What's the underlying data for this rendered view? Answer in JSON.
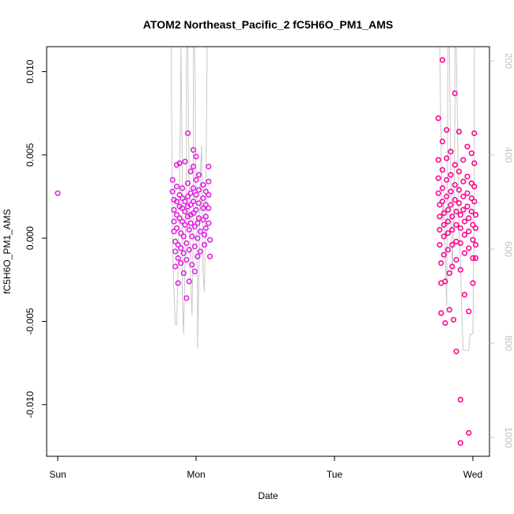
{
  "chart_data": {
    "type": "scatter",
    "title": "ATOM2 Northeast_Pacific_2 fC5H6O_PM1_AMS",
    "xlabel": "Date",
    "ylabel": "fC5H6O_PM1_AMS",
    "x_ticks": [
      {
        "value": 0,
        "label": "Sun"
      },
      {
        "value": 1,
        "label": "Mon"
      },
      {
        "value": 2,
        "label": "Tue"
      },
      {
        "value": 3,
        "label": "Wed"
      }
    ],
    "y_ticks": [
      {
        "value": -0.01,
        "label": "-0.010"
      },
      {
        "value": -0.005,
        "label": "-0.005"
      },
      {
        "value": 0.0,
        "label": "0.000"
      },
      {
        "value": 0.005,
        "label": "0.005"
      },
      {
        "value": 0.01,
        "label": "0.010"
      }
    ],
    "right_axis": {
      "reversed": true,
      "range": [
        170,
        1040
      ],
      "ticks": [
        {
          "value": 200,
          "label": "200"
        },
        {
          "value": 400,
          "label": "400"
        },
        {
          "value": 600,
          "label": "600"
        },
        {
          "value": 800,
          "label": "800"
        },
        {
          "value": 1000,
          "label": "1000"
        }
      ],
      "color": "#c0c0c0"
    },
    "xlim": [
      -0.08,
      3.12
    ],
    "ylim": [
      -0.0131,
      0.0115
    ],
    "grid": false,
    "colors": {
      "early": "#e020e0",
      "late": "#ff0090",
      "line": "#c8c8c8"
    },
    "series": [
      {
        "points": [
          [
            0.0,
            0.0027
          ],
          [
            0.83,
            0.0035
          ],
          [
            0.83,
            0.0028
          ],
          [
            0.84,
            0.0023
          ],
          [
            0.84,
            0.0017
          ],
          [
            0.84,
            0.001
          ],
          [
            0.84,
            0.0004
          ],
          [
            0.85,
            -0.0002
          ],
          [
            0.85,
            -0.0008
          ],
          [
            0.85,
            -0.0017
          ],
          [
            0.86,
            0.0044
          ],
          [
            0.86,
            0.0031
          ],
          [
            0.86,
            0.0022
          ],
          [
            0.86,
            0.0014
          ],
          [
            0.86,
            0.0006
          ],
          [
            0.87,
            -0.0004
          ],
          [
            0.87,
            -0.0012
          ],
          [
            0.87,
            -0.0027
          ],
          [
            0.88,
            0.0045
          ],
          [
            0.88,
            0.0026
          ],
          [
            0.88,
            0.0019
          ],
          [
            0.88,
            0.0012
          ],
          [
            0.89,
            0.0003
          ],
          [
            0.89,
            -0.0006
          ],
          [
            0.89,
            -0.0015
          ],
          [
            0.9,
            0.003
          ],
          [
            0.9,
            0.0024
          ],
          [
            0.9,
            0.0018
          ],
          [
            0.9,
            0.001
          ],
          [
            0.91,
            0.0001
          ],
          [
            0.91,
            -0.0009
          ],
          [
            0.91,
            -0.0021
          ],
          [
            0.92,
            0.0046
          ],
          [
            0.92,
            0.0022
          ],
          [
            0.92,
            0.0016
          ],
          [
            0.92,
            0.0008
          ],
          [
            0.93,
            -0.0003
          ],
          [
            0.93,
            -0.0013
          ],
          [
            0.93,
            -0.0036
          ],
          [
            0.94,
            0.0063
          ],
          [
            0.94,
            0.0033
          ],
          [
            0.94,
            0.0025
          ],
          [
            0.94,
            0.0019
          ],
          [
            0.94,
            0.0013
          ],
          [
            0.95,
            0.0005
          ],
          [
            0.95,
            -0.0007
          ],
          [
            0.95,
            -0.0026
          ],
          [
            0.96,
            0.004
          ],
          [
            0.96,
            0.0027
          ],
          [
            0.96,
            0.002
          ],
          [
            0.96,
            0.0014
          ],
          [
            0.96,
            0.0009
          ],
          [
            0.97,
            0.0001
          ],
          [
            0.97,
            -0.0016
          ],
          [
            0.98,
            0.0053
          ],
          [
            0.98,
            0.0043
          ],
          [
            0.98,
            0.003
          ],
          [
            0.98,
            0.0022
          ],
          [
            0.98,
            0.0015
          ],
          [
            0.99,
            0.0007
          ],
          [
            0.99,
            -0.0005
          ],
          [
            0.99,
            -0.002
          ],
          [
            1.0,
            0.0049
          ],
          [
            1.0,
            0.0035
          ],
          [
            1.0,
            0.0026
          ],
          [
            1.0,
            0.0017
          ],
          [
            1.01,
            0.0009
          ],
          [
            1.01,
            0.0
          ],
          [
            1.01,
            -0.0011
          ],
          [
            1.02,
            0.0038
          ],
          [
            1.02,
            0.0029
          ],
          [
            1.02,
            0.0021
          ],
          [
            1.02,
            0.0012
          ],
          [
            1.03,
            0.0004
          ],
          [
            1.03,
            -0.0008
          ],
          [
            1.05,
            0.0032
          ],
          [
            1.05,
            0.0024
          ],
          [
            1.05,
            0.0018
          ],
          [
            1.05,
            0.0011
          ],
          [
            1.06,
            0.0002
          ],
          [
            1.06,
            -0.0004
          ],
          [
            1.07,
            0.0028
          ],
          [
            1.07,
            0.002
          ],
          [
            1.07,
            0.0013
          ],
          [
            1.07,
            0.0006
          ],
          [
            1.09,
            0.0043
          ],
          [
            1.09,
            0.0034
          ],
          [
            1.09,
            0.0026
          ],
          [
            1.09,
            0.0018
          ],
          [
            1.09,
            0.0009
          ],
          [
            1.1,
            -0.0001
          ],
          [
            1.1,
            -0.0011
          ]
        ]
      },
      {
        "points": [
          [
            2.75,
            0.0072
          ],
          [
            2.75,
            0.0047
          ],
          [
            2.75,
            0.0036
          ],
          [
            2.75,
            0.0027
          ],
          [
            2.76,
            0.002
          ],
          [
            2.76,
            0.0013
          ],
          [
            2.76,
            0.0005
          ],
          [
            2.76,
            -0.0004
          ],
          [
            2.77,
            -0.0015
          ],
          [
            2.77,
            -0.0027
          ],
          [
            2.77,
            -0.0045
          ],
          [
            2.78,
            0.0107
          ],
          [
            2.78,
            0.0058
          ],
          [
            2.78,
            0.0041
          ],
          [
            2.78,
            0.003
          ],
          [
            2.78,
            0.0022
          ],
          [
            2.79,
            0.0015
          ],
          [
            2.79,
            0.0008
          ],
          [
            2.79,
            0.0001
          ],
          [
            2.79,
            -0.001
          ],
          [
            2.8,
            -0.0026
          ],
          [
            2.8,
            -0.0051
          ],
          [
            2.81,
            0.0065
          ],
          [
            2.81,
            0.0048
          ],
          [
            2.81,
            0.0035
          ],
          [
            2.81,
            0.0025
          ],
          [
            2.82,
            0.0017
          ],
          [
            2.82,
            0.001
          ],
          [
            2.82,
            0.0003
          ],
          [
            2.82,
            -0.0007
          ],
          [
            2.83,
            -0.0021
          ],
          [
            2.83,
            -0.0043
          ],
          [
            2.84,
            0.0052
          ],
          [
            2.84,
            0.0038
          ],
          [
            2.84,
            0.0028
          ],
          [
            2.84,
            0.002
          ],
          [
            2.85,
            0.0013
          ],
          [
            2.85,
            0.0005
          ],
          [
            2.85,
            -0.0004
          ],
          [
            2.85,
            -0.0017
          ],
          [
            2.86,
            -0.0049
          ],
          [
            2.87,
            0.0087
          ],
          [
            2.87,
            0.0044
          ],
          [
            2.87,
            0.0032
          ],
          [
            2.87,
            0.0023
          ],
          [
            2.88,
            0.0016
          ],
          [
            2.88,
            0.0008
          ],
          [
            2.88,
            -0.0002
          ],
          [
            2.88,
            -0.0013
          ],
          [
            2.88,
            -0.0068
          ],
          [
            2.9,
            0.0064
          ],
          [
            2.9,
            0.004
          ],
          [
            2.9,
            0.0029
          ],
          [
            2.9,
            0.0021
          ],
          [
            2.91,
            0.0014
          ],
          [
            2.91,
            0.0006
          ],
          [
            2.91,
            -0.0003
          ],
          [
            2.91,
            -0.0019
          ],
          [
            2.91,
            -0.0097
          ],
          [
            2.91,
            -0.0123
          ],
          [
            2.93,
            0.0047
          ],
          [
            2.93,
            0.0034
          ],
          [
            2.93,
            0.0025
          ],
          [
            2.93,
            0.0017
          ],
          [
            2.94,
            0.001
          ],
          [
            2.94,
            0.0002
          ],
          [
            2.94,
            -0.0009
          ],
          [
            2.94,
            -0.0034
          ],
          [
            2.96,
            0.0055
          ],
          [
            2.96,
            0.0037
          ],
          [
            2.96,
            0.0027
          ],
          [
            2.96,
            0.0019
          ],
          [
            2.97,
            0.0012
          ],
          [
            2.97,
            0.0004
          ],
          [
            2.97,
            -0.0006
          ],
          [
            2.97,
            -0.0044
          ],
          [
            2.97,
            -0.0117
          ],
          [
            2.99,
            0.0051
          ],
          [
            2.99,
            0.0033
          ],
          [
            2.99,
            0.0024
          ],
          [
            2.99,
            0.0016
          ],
          [
            3.0,
            0.0008
          ],
          [
            3.0,
            -0.0001
          ],
          [
            3.0,
            -0.0012
          ],
          [
            3.0,
            -0.0027
          ],
          [
            3.01,
            0.0063
          ],
          [
            3.01,
            0.0045
          ],
          [
            3.01,
            0.0031
          ],
          [
            3.01,
            0.0022
          ],
          [
            3.02,
            0.0014
          ],
          [
            3.02,
            0.0006
          ],
          [
            3.02,
            -0.0004
          ],
          [
            3.02,
            -0.0012
          ]
        ]
      }
    ],
    "line_series": {
      "right_axis": true,
      "points": [
        [
          0.82,
          170
        ],
        [
          0.83,
          590
        ],
        [
          0.84,
          690
        ],
        [
          0.85,
          760
        ],
        [
          0.86,
          760
        ],
        [
          0.87,
          640
        ],
        [
          0.88,
          500
        ],
        [
          0.89,
          170
        ],
        [
          0.89,
          170
        ],
        [
          0.9,
          420
        ],
        [
          0.9,
          700
        ],
        [
          0.91,
          780
        ],
        [
          0.92,
          620
        ],
        [
          0.93,
          430
        ],
        [
          0.93,
          170
        ],
        [
          0.94,
          170
        ],
        [
          0.95,
          460
        ],
        [
          0.96,
          660
        ],
        [
          0.97,
          740
        ],
        [
          0.98,
          560
        ],
        [
          0.98,
          170
        ],
        [
          0.99,
          170
        ],
        [
          1.0,
          520
        ],
        [
          1.01,
          690
        ],
        [
          1.01,
          810
        ],
        [
          1.02,
          660
        ],
        [
          1.03,
          440
        ],
        [
          1.04,
          380
        ],
        [
          1.05,
          650
        ],
        [
          1.06,
          690
        ],
        [
          1.07,
          480
        ],
        [
          1.08,
          170
        ],
        [
          2.76,
          170
        ],
        [
          2.77,
          380
        ],
        [
          2.78,
          540
        ],
        [
          2.79,
          500
        ],
        [
          2.8,
          600
        ],
        [
          2.81,
          720
        ],
        [
          2.82,
          170
        ],
        [
          2.83,
          170
        ],
        [
          2.84,
          420
        ],
        [
          2.85,
          650
        ],
        [
          2.86,
          560
        ],
        [
          2.87,
          330
        ],
        [
          2.87,
          170
        ],
        [
          2.88,
          170
        ],
        [
          2.9,
          560
        ],
        [
          2.91,
          620
        ],
        [
          2.92,
          740
        ],
        [
          2.93,
          815
        ],
        [
          2.97,
          815
        ],
        [
          2.98,
          780
        ],
        [
          3.0,
          780
        ],
        [
          3.01,
          480
        ],
        [
          3.01,
          170
        ]
      ]
    }
  }
}
